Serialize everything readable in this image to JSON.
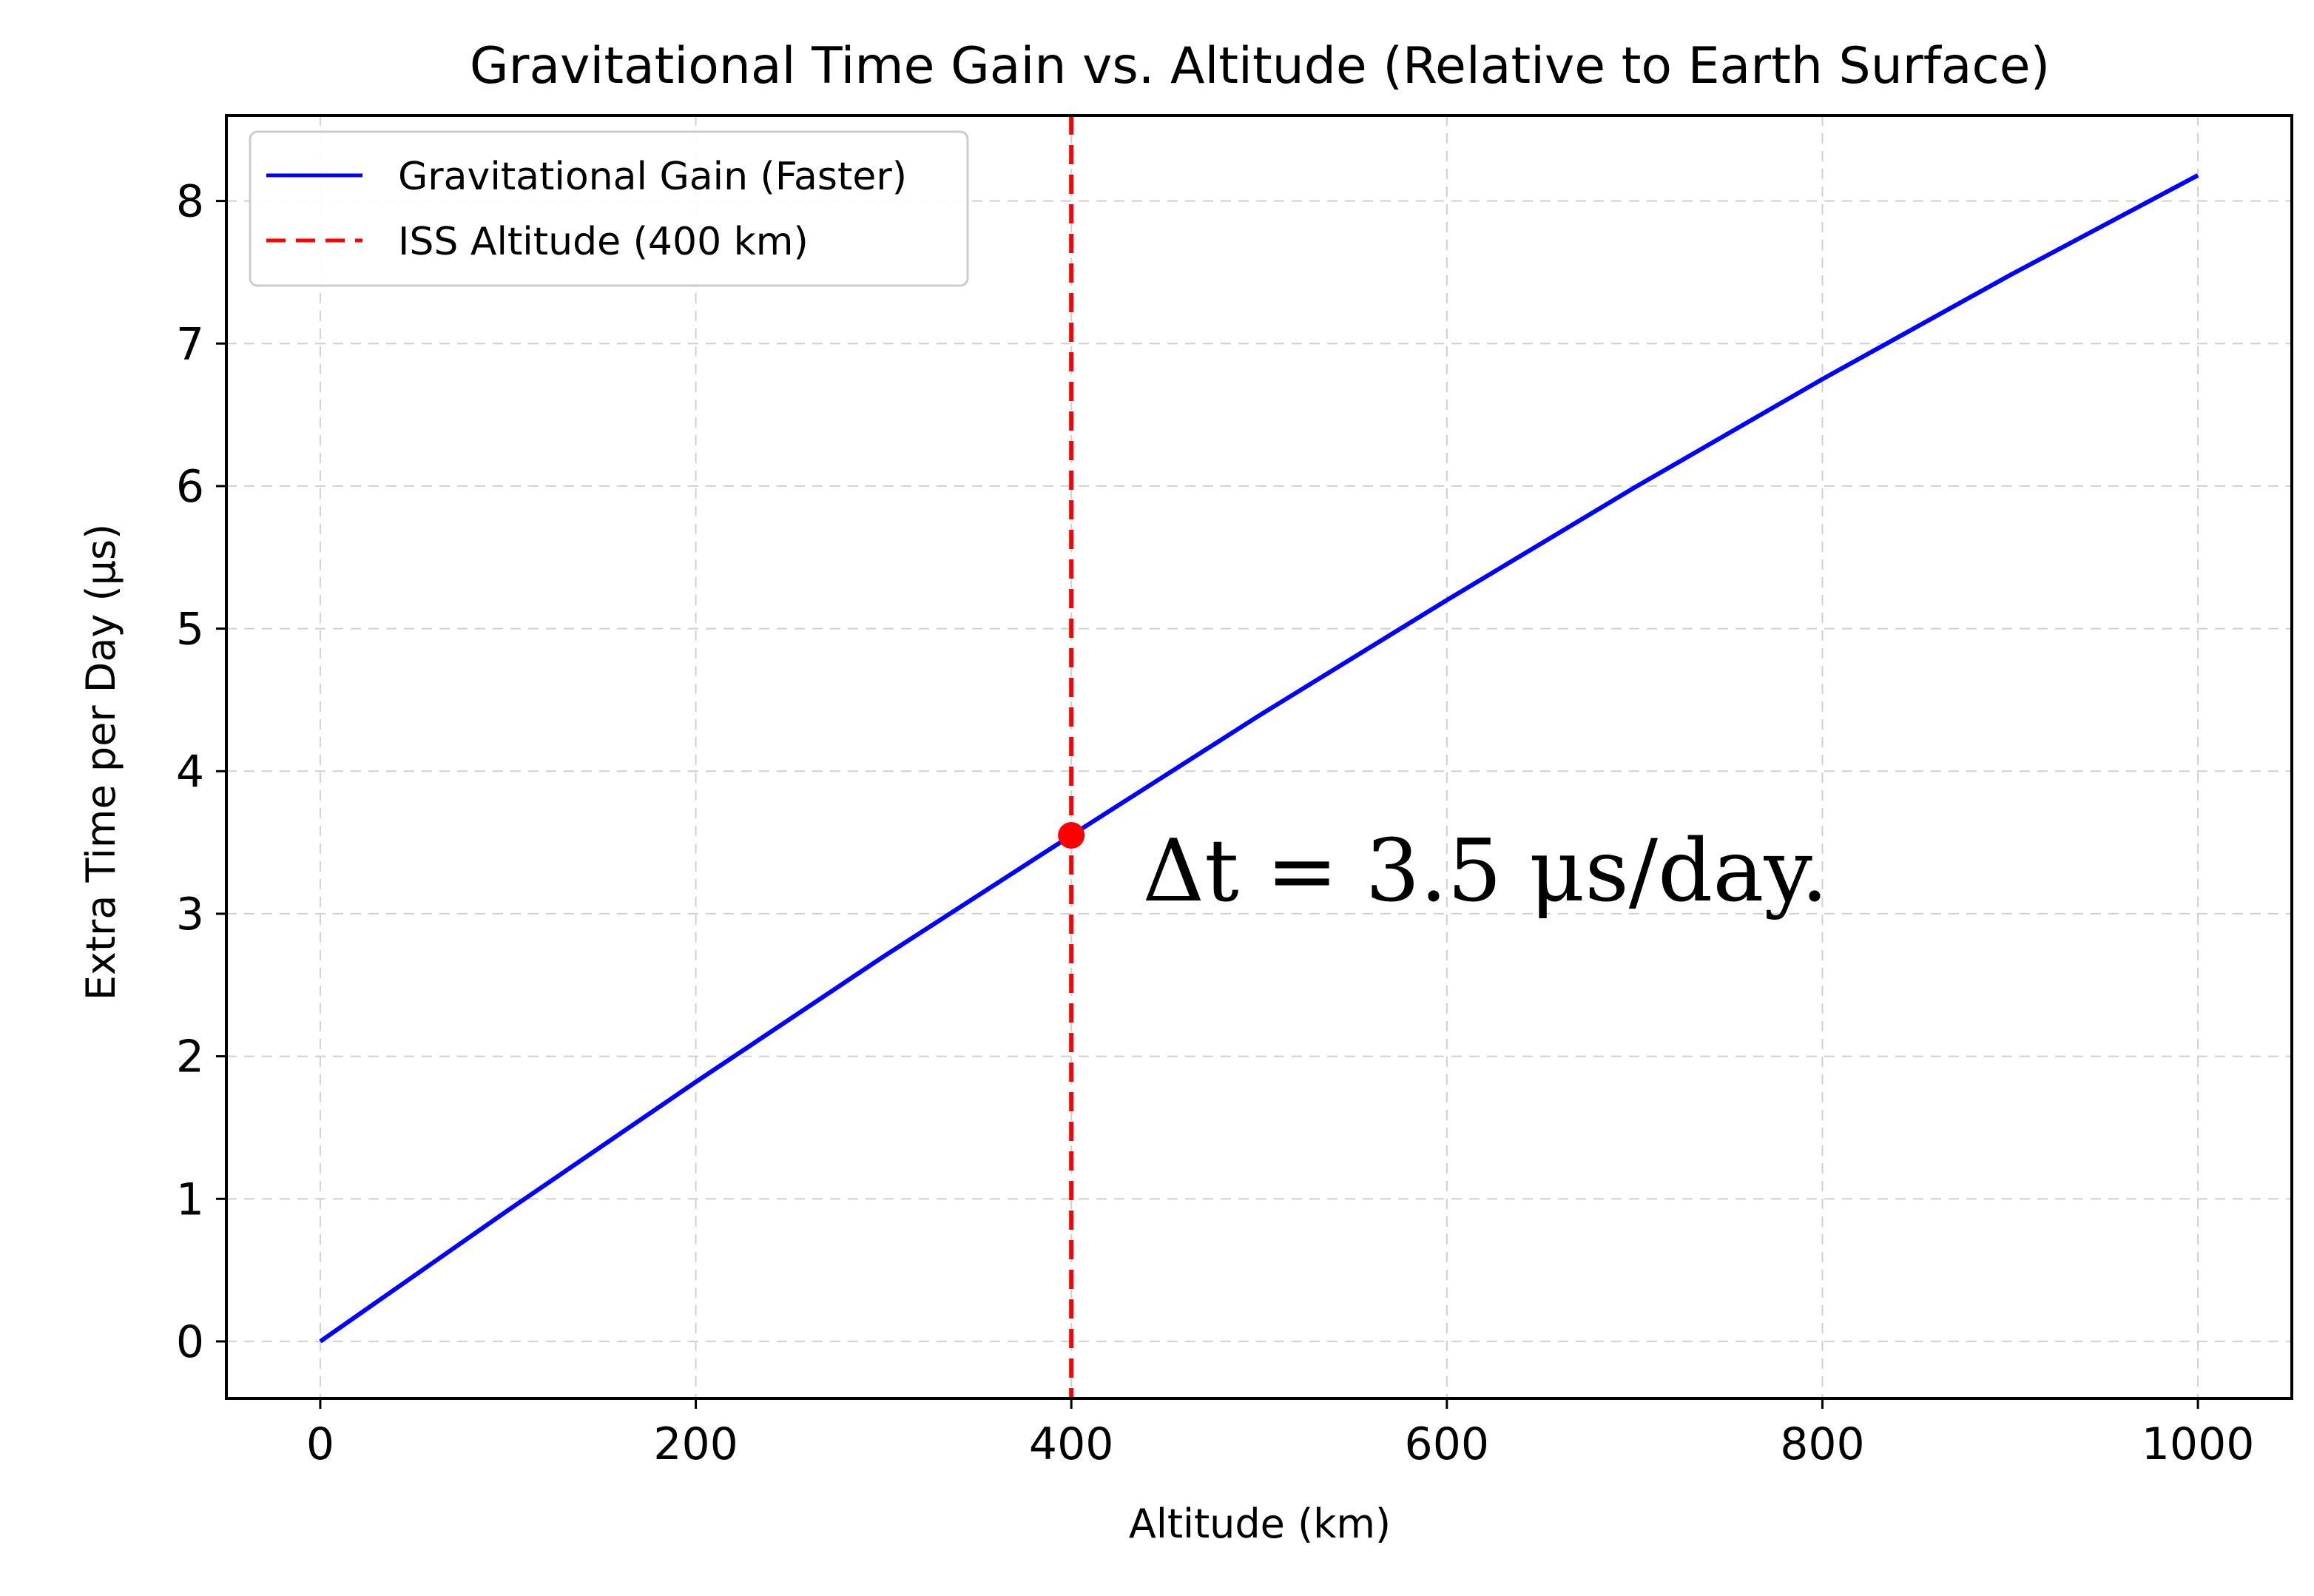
{
  "chart_data": {
    "type": "line",
    "title": "Gravitational Time Gain vs. Altitude (Relative to Earth Surface)",
    "xlabel": "Altitude (km)",
    "ylabel": "Extra Time per Day (μs)",
    "xlim": [
      -50,
      1050
    ],
    "ylim": [
      -0.4,
      8.6
    ],
    "xticks": [
      0,
      200,
      400,
      600,
      800,
      1000
    ],
    "yticks": [
      0,
      1,
      2,
      3,
      4,
      5,
      6,
      7,
      8
    ],
    "grid": true,
    "legend_position": "top-left",
    "series": [
      {
        "name": "Gravitational Gain (Faster)",
        "color": "#0000ff",
        "style": "solid",
        "x": [
          0,
          100,
          200,
          300,
          400,
          500,
          600,
          700,
          800,
          900,
          1000
        ],
        "y": [
          0.0,
          0.92,
          1.82,
          2.7,
          3.55,
          4.39,
          5.2,
          5.99,
          6.75,
          7.48,
          8.18
        ]
      },
      {
        "name": "ISS Altitude (400 km)",
        "color": "#ff0000",
        "style": "dashed",
        "type": "vline",
        "x": 400
      }
    ],
    "marker": {
      "x": 400,
      "y": 3.55,
      "color": "#ff0000"
    },
    "annotation": {
      "text": "Δt = 3.5 μs/day.",
      "x": 430,
      "y": 3.3
    }
  }
}
